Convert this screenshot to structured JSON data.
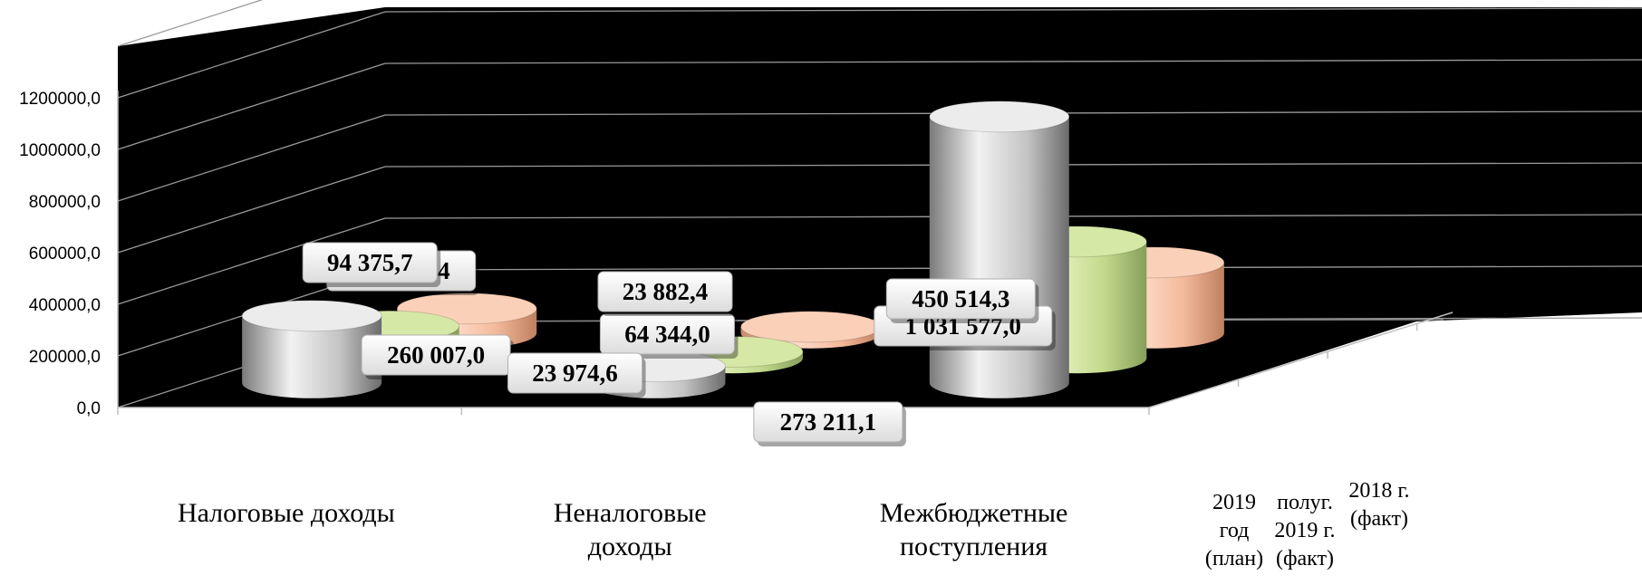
{
  "chart_data": {
    "type": "bar",
    "style": "3d-cylinder",
    "categories": [
      [
        "Налоговые доходы"
      ],
      [
        "Неналоговые",
        "доходы"
      ],
      [
        "Межбюджетные",
        "поступления"
      ]
    ],
    "series": [
      {
        "name": [
          "2019",
          "год",
          "(план)"
        ],
        "values": [
          260007.0,
          64344.0,
          1031577.0
        ],
        "labels": [
          "260 007,0",
          "64 344,0",
          "1 031 577,0"
        ],
        "color": "#c8c8c8"
      },
      {
        "name": [
          "полуг.",
          "2019 г.",
          "(факт)"
        ],
        "values": [
          122680.4,
          23882.4,
          450514.3
        ],
        "labels": [
          "122 680,4",
          "23 882,4",
          "450 514,3"
        ],
        "color": "#c6dc8e"
      },
      {
        "name": [
          "2018 г.",
          "(факт)"
        ],
        "values": [
          94375.7,
          23974.6,
          273211.1
        ],
        "labels": [
          "94 375,7",
          "23 974,6",
          "273 211,1"
        ],
        "color": "#f6bfa2"
      }
    ],
    "yticks": [
      "0,0",
      "200000,0",
      "400000,0",
      "600000,0",
      "800000,0",
      "1000000,0",
      "1200000,0"
    ],
    "ylim": [
      0,
      1400000
    ],
    "grid": true,
    "background": "#000000",
    "legend_position": "bottom-right"
  }
}
